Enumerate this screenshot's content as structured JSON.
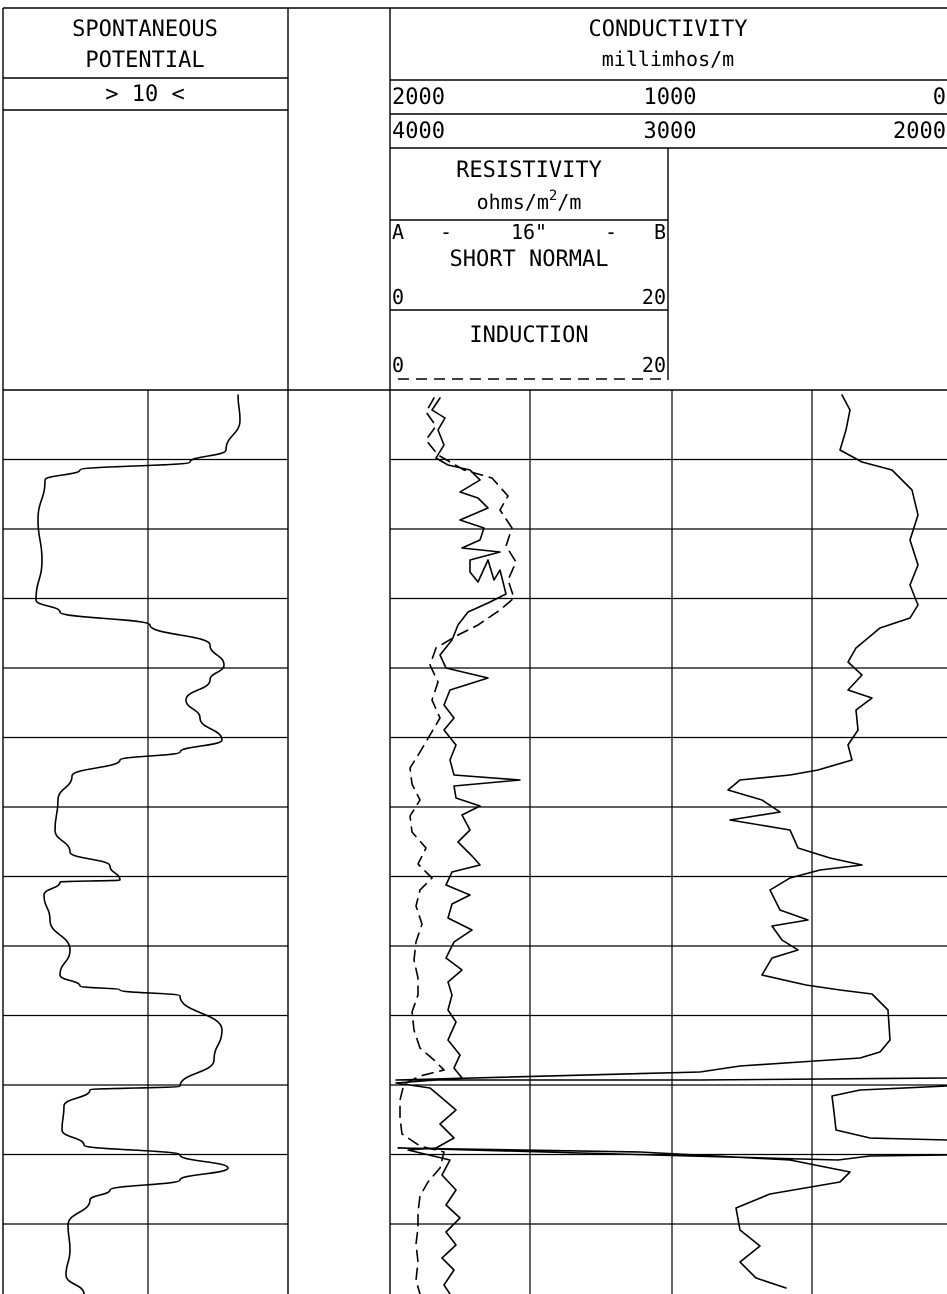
{
  "header": {
    "sp": {
      "title_1": "SPONTANEOUS",
      "title_2": "POTENTIAL",
      "scale": "> 10 <"
    },
    "conductivity": {
      "title": "CONDUCTIVITY",
      "unit": "millimhos/m",
      "scale_1": {
        "left": "2000",
        "mid": "1000",
        "right": "0"
      },
      "scale_2": {
        "left": "4000",
        "mid": "3000",
        "right": "2000"
      }
    },
    "resistivity": {
      "title": "RESISTIVITY",
      "unit_base": "ohms/m",
      "unit_sup": "2",
      "unit_tail": "/m",
      "spacing": {
        "left": "A",
        "dash_1": "-",
        "value": "16\"",
        "dash_2": "-",
        "right": "B"
      },
      "short_normal": {
        "title": "SHORT NORMAL",
        "min": "0",
        "max": "20"
      },
      "induction": {
        "title": "INDUCTION",
        "min": "0",
        "max": "20"
      }
    }
  },
  "style": {
    "ink": "#000000",
    "paper": "#ffffff"
  },
  "chart_data": {
    "type": "line",
    "series": [
      {
        "name": "SPONTANEOUS POTENTIAL"
      },
      {
        "name": "SHORT NORMAL"
      },
      {
        "name": "INDUCTION"
      },
      {
        "name": "CONDUCTIVITY"
      }
    ],
    "grid": true
  }
}
